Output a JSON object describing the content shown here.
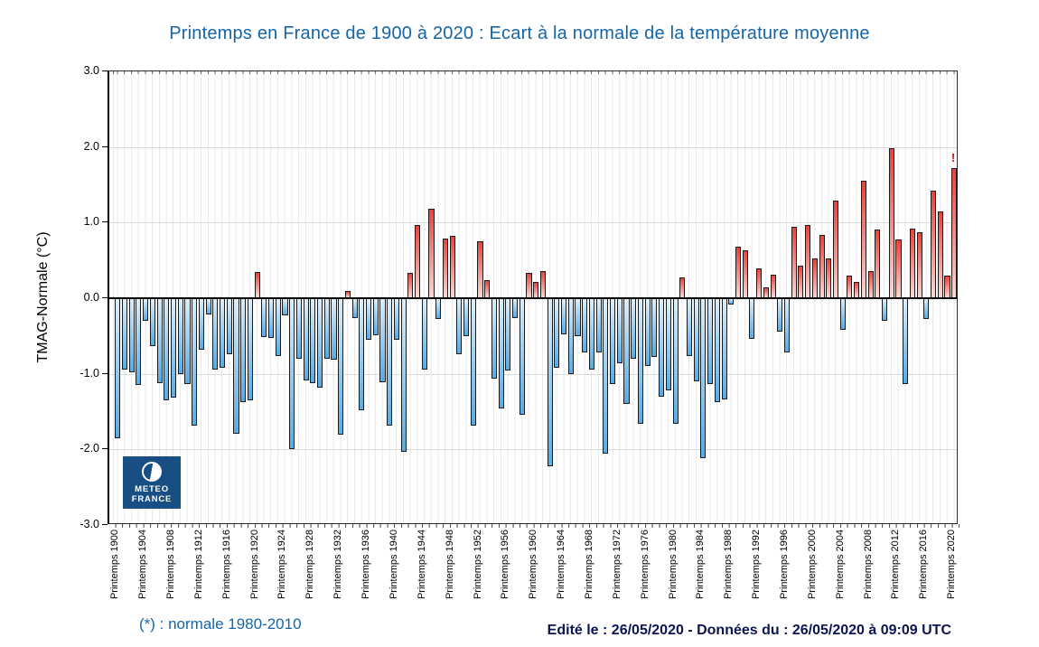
{
  "title": {
    "text": "Printemps en France de 1900 à 2020 : Ecart à la normale de la température moyenne"
  },
  "axis": {
    "y_label": "TMAG-Normale (°C)"
  },
  "annotation": {
    "mark_2020": "!"
  },
  "footer": {
    "note": "(*) : normale 1980-2010",
    "edited": "Edité le : 26/05/2020 - Données du : 26/05/2020 à 09:09 UTC"
  },
  "logo": {
    "line1": "METEO",
    "line2": "FRANCE"
  },
  "colors": {
    "title": "#1565a8",
    "footer_edited": "#0b1553",
    "bar_positive_strong": "#e8423b",
    "bar_positive_light": "#fbd7d3",
    "bar_negative_light": "#ddeefa",
    "bar_negative_strong": "#54abe8",
    "bar_border": "#1c1c1c",
    "logo_bg": "#174f85",
    "annotation_red": "#cc1111"
  },
  "chart_data": {
    "type": "bar",
    "title": "Printemps en France de 1900 à 2020 : Ecart à la normale de la température moyenne",
    "xlabel": "",
    "ylabel": "TMAG-Normale (°C)",
    "ylim": [
      -3.0,
      3.0
    ],
    "grid": true,
    "legend_position": "none",
    "start_year": 1900,
    "end_year": 2020,
    "ytick_values": [
      3.0,
      2.0,
      1.0,
      0.0,
      -1.0,
      -2.0,
      -3.0
    ],
    "ytick_labels": [
      "3.0",
      "2.0",
      "1.0",
      "0.0",
      "-1.0",
      "-2.0",
      "-3.0"
    ],
    "xtick_labels": [
      "Printemps 1900",
      "Printemps 1904",
      "Printemps 1908",
      "Printemps 1912",
      "Printemps 1916",
      "Printemps 1920",
      "Printemps 1924",
      "Printemps 1928",
      "Printemps 1932",
      "Printemps 1936",
      "Printemps 1940",
      "Printemps 1944",
      "Printemps 1948",
      "Printemps 1952",
      "Printemps 1956",
      "Printemps 1960",
      "Printemps 1964",
      "Printemps 1968",
      "Printemps 1972",
      "Printemps 1976",
      "Printemps 1980",
      "Printemps 1984",
      "Printemps 1988",
      "Printemps 1992",
      "Printemps 1996",
      "Printemps 2000",
      "Printemps 2004",
      "Printemps 2008",
      "Printemps 2012",
      "Printemps 2016",
      "Printemps 2020"
    ],
    "years": [
      1900,
      1901,
      1902,
      1903,
      1904,
      1905,
      1906,
      1907,
      1908,
      1909,
      1910,
      1911,
      1912,
      1913,
      1914,
      1915,
      1916,
      1917,
      1918,
      1919,
      1920,
      1921,
      1922,
      1923,
      1924,
      1925,
      1926,
      1927,
      1928,
      1929,
      1930,
      1931,
      1932,
      1933,
      1934,
      1935,
      1936,
      1937,
      1938,
      1939,
      1940,
      1941,
      1942,
      1943,
      1944,
      1945,
      1946,
      1947,
      1948,
      1949,
      1950,
      1951,
      1952,
      1953,
      1954,
      1955,
      1956,
      1957,
      1958,
      1959,
      1960,
      1961,
      1962,
      1963,
      1964,
      1965,
      1966,
      1967,
      1968,
      1969,
      1970,
      1971,
      1972,
      1973,
      1974,
      1975,
      1976,
      1977,
      1978,
      1979,
      1980,
      1981,
      1982,
      1983,
      1984,
      1985,
      1986,
      1987,
      1988,
      1989,
      1990,
      1991,
      1992,
      1993,
      1994,
      1995,
      1996,
      1997,
      1998,
      1999,
      2000,
      2001,
      2002,
      2003,
      2004,
      2005,
      2006,
      2007,
      2008,
      2009,
      2010,
      2011,
      2012,
      2013,
      2014,
      2015,
      2016,
      2017,
      2018,
      2019,
      2020
    ],
    "values": [
      -1.85,
      -0.95,
      -0.98,
      -1.15,
      -0.3,
      -0.63,
      -1.12,
      -1.35,
      -1.32,
      -1.0,
      -1.14,
      -1.68,
      -0.68,
      -0.22,
      -0.95,
      -0.92,
      -0.74,
      -1.79,
      -1.37,
      -1.35,
      0.35,
      -0.51,
      -0.53,
      -0.76,
      -0.23,
      -2.0,
      -0.8,
      -1.09,
      -1.12,
      -1.18,
      -0.8,
      -0.81,
      -1.8,
      0.09,
      -0.26,
      -1.48,
      -0.55,
      -0.49,
      -1.11,
      -1.68,
      -0.55,
      -2.03,
      0.33,
      0.97,
      -0.95,
      1.18,
      -0.28,
      0.79,
      0.82,
      -0.74,
      -0.5,
      -1.68,
      0.75,
      0.24,
      -1.06,
      -1.46,
      -0.96,
      -0.26,
      -1.54,
      0.33,
      0.22,
      0.36,
      -2.22,
      -0.92,
      -0.48,
      -1.0,
      -0.5,
      -0.72,
      -0.94,
      -0.72,
      -2.06,
      -1.14,
      -0.86,
      -1.4,
      -0.8,
      -1.66,
      -0.9,
      -0.78,
      -1.3,
      -1.22,
      -1.66,
      0.28,
      -0.76,
      -1.1,
      -2.12,
      -1.14,
      -1.38,
      -1.34,
      -0.08,
      0.68,
      0.63,
      -0.54,
      0.4,
      0.14,
      0.31,
      -0.44,
      -0.72,
      0.94,
      0.43,
      0.97,
      0.52,
      0.84,
      0.52,
      1.29,
      -0.42,
      0.3,
      0.21,
      1.55,
      0.36,
      0.91,
      -0.3,
      1.98,
      0.78,
      -1.13,
      0.92,
      0.87,
      -0.28,
      1.42,
      1.15,
      0.3,
      1.72
    ]
  }
}
